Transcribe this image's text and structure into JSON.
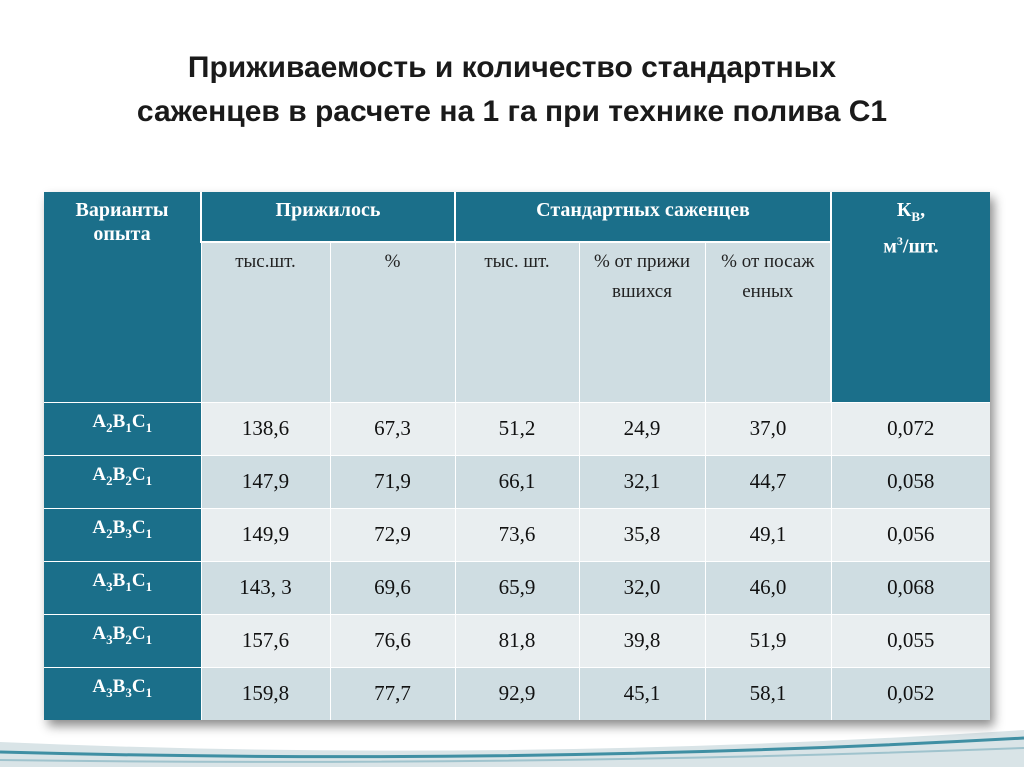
{
  "title": {
    "line1": "Приживаемость и количество стандартных",
    "line2": "саженцев в расчете на 1 га при технике полива С1"
  },
  "table": {
    "headers": {
      "variants": "Варианты опыта",
      "survived": "Прижилось",
      "standard": "Стандартных саженцев",
      "kv_main": "К",
      "kv_sub": "В",
      "kv_comma": ",",
      "kv_unit_m": "м",
      "kv_unit_exp": "3",
      "kv_unit_rest": "/шт."
    },
    "subheaders": [
      "тыс.шт.",
      "%",
      "тыс. шт.",
      "% от прижившихся",
      "% от посаженных"
    ],
    "rows": [
      {
        "a": "A",
        "a_sub": "2",
        "b": "B",
        "b_sub": "1",
        "c": "C",
        "c_sub": "1",
        "values": [
          "138,6",
          "67,3",
          "51,2",
          "24,9",
          "37,0",
          "0,072"
        ]
      },
      {
        "a": "A",
        "a_sub": "2",
        "b": "B",
        "b_sub": "2",
        "c": "C",
        "c_sub": "1",
        "values": [
          "147,9",
          "71,9",
          "66,1",
          "32,1",
          "44,7",
          "0,058"
        ]
      },
      {
        "a": "A",
        "a_sub": "2",
        "b": "B",
        "b_sub": "3",
        "c": "C",
        "c_sub": "1",
        "values": [
          "149,9",
          "72,9",
          "73,6",
          "35,8",
          "49,1",
          "0,056"
        ]
      },
      {
        "a": "A",
        "a_sub": "3",
        "b": "B",
        "b_sub": "1",
        "c": "C",
        "c_sub": "1",
        "values": [
          "143, 3",
          "69,6",
          "65,9",
          "32,0",
          "46,0",
          "0,068"
        ]
      },
      {
        "a": "A",
        "a_sub": "3",
        "b": "B",
        "b_sub": "2",
        "c": "C",
        "c_sub": "1",
        "values": [
          "157,6",
          "76,6",
          "81,8",
          "39,8",
          "51,9",
          "0,055"
        ]
      },
      {
        "a": "A",
        "a_sub": "3",
        "b": "B",
        "b_sub": "3",
        "c": "C",
        "c_sub": "1",
        "values": [
          "159,8",
          "77,7",
          "92,9",
          "45,1",
          "58,1",
          "0,052"
        ]
      }
    ]
  },
  "colors": {
    "header_bg": "#1b6f8a",
    "row_light": "#e9eef0",
    "row_dark": "#cfdde2",
    "curl_accent": "#3f8fa3"
  }
}
